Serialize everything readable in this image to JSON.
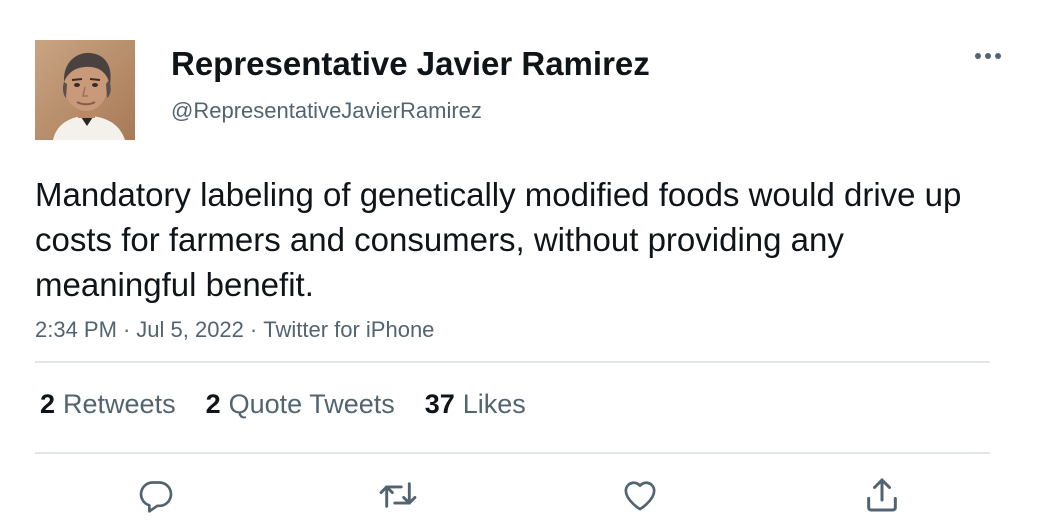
{
  "author": {
    "name": "Representative Javier Ramirez",
    "handle": "@RepresentativeJavierRamirez"
  },
  "tweet": {
    "text": "Mandatory labeling of genetically modified foods would drive up costs for farmers and consumers, without providing any meaningful benefit.",
    "time": "2:34 PM",
    "date": "Jul 5, 2022",
    "source": "Twitter for iPhone",
    "separator": "·"
  },
  "stats": {
    "retweets": {
      "count": "2",
      "label": "Retweets"
    },
    "quote_tweets": {
      "count": "2",
      "label": "Quote Tweets"
    },
    "likes": {
      "count": "37",
      "label": "Likes"
    }
  },
  "icons": {
    "more": "more-horizontal-icon",
    "reply": "reply-icon",
    "retweet": "retweet-icon",
    "like": "heart-icon",
    "share": "share-icon"
  },
  "colors": {
    "primary_text": "#0f1419",
    "secondary_text": "#536471",
    "divider": "#e3e6e8",
    "icon": "#536471"
  }
}
